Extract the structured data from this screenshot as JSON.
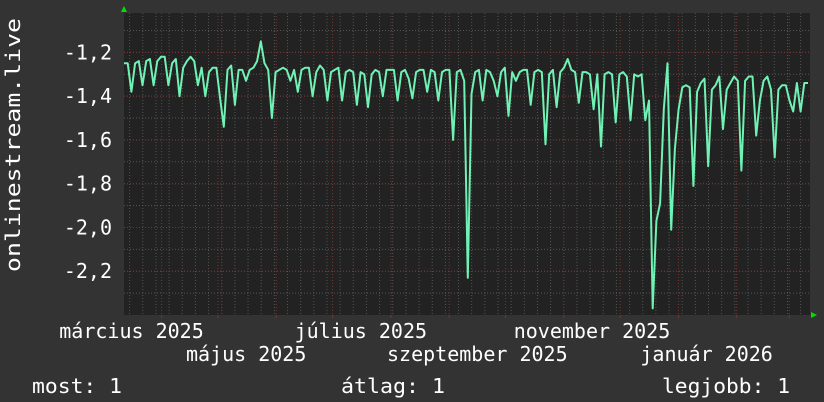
{
  "chart_data": {
    "type": "line",
    "title": "",
    "ylabel": "onlinestream.live",
    "xlabel": "",
    "xlim": [
      "2025-03-12",
      "2026-03-12"
    ],
    "ylim": [
      -2.4,
      -1.02
    ],
    "grid": true,
    "yticks": [
      {
        "value": -1.2,
        "label": "-1,2"
      },
      {
        "value": -1.4,
        "label": "-1,4"
      },
      {
        "value": -1.6,
        "label": "-1,6"
      },
      {
        "value": -1.8,
        "label": "-1,8"
      },
      {
        "value": -2.0,
        "label": "-2,0"
      },
      {
        "value": -2.2,
        "label": "-2,2"
      }
    ],
    "xticks": [
      {
        "date": "2025-03-16",
        "label": "március 2025"
      },
      {
        "date": "2025-05-16",
        "label": "május 2025"
      },
      {
        "date": "2025-07-16",
        "label": "július 2025"
      },
      {
        "date": "2025-09-16",
        "label": "szeptember 2025"
      },
      {
        "date": "2025-11-16",
        "label": "november 2025"
      },
      {
        "date": "2026-01-16",
        "label": "január 2026"
      }
    ],
    "colors": {
      "background": "#333333",
      "plot": "#222222",
      "line": "#6ff2b4",
      "major_grid": "#7a3434",
      "minor_grid": "#555555",
      "arrow": "#00e000"
    },
    "series": [
      {
        "values": [
          -1.25,
          -1.25,
          -1.38,
          -1.25,
          -1.24,
          -1.35,
          -1.24,
          -1.23,
          -1.35,
          -1.24,
          -1.22,
          -1.22,
          -1.35,
          -1.25,
          -1.23,
          -1.4,
          -1.27,
          -1.24,
          -1.22,
          -1.24,
          -1.35,
          -1.27,
          -1.4,
          -1.29,
          -1.27,
          -1.27,
          -1.41,
          -1.54,
          -1.28,
          -1.26,
          -1.44,
          -1.28,
          -1.28,
          -1.33,
          -1.28,
          -1.27,
          -1.24,
          -1.15,
          -1.25,
          -1.28,
          -1.5,
          -1.29,
          -1.28,
          -1.27,
          -1.28,
          -1.33,
          -1.28,
          -1.38,
          -1.28,
          -1.27,
          -1.27,
          -1.4,
          -1.29,
          -1.26,
          -1.28,
          -1.42,
          -1.29,
          -1.28,
          -1.27,
          -1.42,
          -1.29,
          -1.28,
          -1.29,
          -1.44,
          -1.29,
          -1.3,
          -1.45,
          -1.3,
          -1.28,
          -1.29,
          -1.4,
          -1.28,
          -1.28,
          -1.28,
          -1.42,
          -1.29,
          -1.28,
          -1.32,
          -1.41,
          -1.29,
          -1.28,
          -1.28,
          -1.38,
          -1.28,
          -1.29,
          -1.42,
          -1.29,
          -1.28,
          -1.28,
          -1.6,
          -1.29,
          -1.28,
          -1.33,
          -2.23,
          -1.39,
          -1.29,
          -1.28,
          -1.42,
          -1.28,
          -1.29,
          -1.33,
          -1.4,
          -1.29,
          -1.27,
          -1.49,
          -1.29,
          -1.33,
          -1.29,
          -1.28,
          -1.28,
          -1.44,
          -1.29,
          -1.28,
          -1.29,
          -1.62,
          -1.3,
          -1.28,
          -1.45,
          -1.29,
          -1.27,
          -1.23,
          -1.28,
          -1.29,
          -1.43,
          -1.29,
          -1.29,
          -1.3,
          -1.46,
          -1.3,
          -1.63,
          -1.3,
          -1.29,
          -1.3,
          -1.52,
          -1.3,
          -1.29,
          -1.31,
          -1.51,
          -1.3,
          -1.31,
          -1.3,
          -1.51,
          -1.42,
          -2.37,
          -1.97,
          -1.89,
          -1.46,
          -1.25,
          -2.01,
          -1.64,
          -1.46,
          -1.36,
          -1.35,
          -1.36,
          -1.81,
          -1.38,
          -1.34,
          -1.32,
          -1.72,
          -1.37,
          -1.35,
          -1.31,
          -1.55,
          -1.37,
          -1.34,
          -1.31,
          -1.33,
          -1.74,
          -1.33,
          -1.31,
          -1.31,
          -1.58,
          -1.42,
          -1.33,
          -1.31,
          -1.37,
          -1.68,
          -1.37,
          -1.35,
          -1.35,
          -1.42,
          -1.47,
          -1.34,
          -1.47,
          -1.34,
          -1.34
        ]
      }
    ]
  },
  "legend": {
    "current": "most: 1",
    "average": "átlag: 1",
    "max": "legjobb: 1"
  }
}
